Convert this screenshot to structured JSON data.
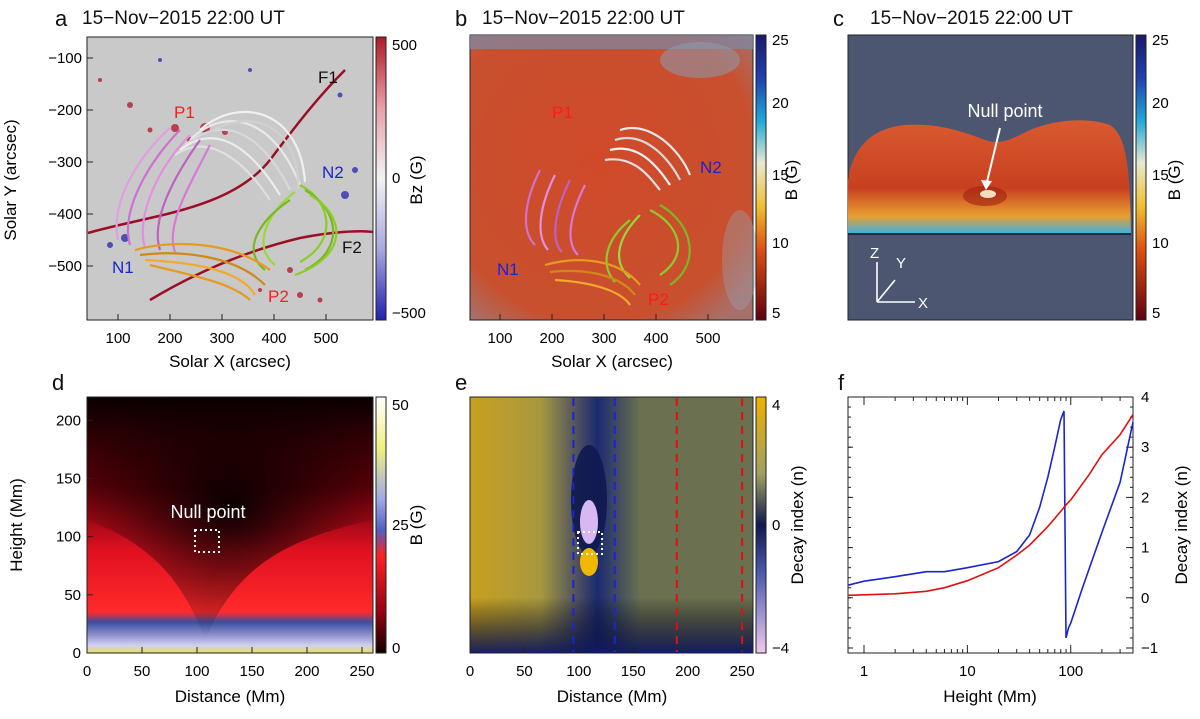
{
  "colors": {
    "red_loop": "#c01030",
    "blue_label": "#1a24d0",
    "red_label": "#ff1a1a",
    "fline": "#9b0f26",
    "green_loop": "#8ccc2a",
    "orange_loop": "#e59a20",
    "pink_loop": "#d070d0",
    "white_loop": "#e8e8e8",
    "slate_bg": "#4d5670",
    "curve_blue": "#1a24d0",
    "curve_red": "#e01010"
  },
  "panel_a": {
    "letter": "a",
    "title": "15−Nov−2015 22:00 UT",
    "xlabel": "Solar X (arcsec)",
    "ylabel": "Solar Y (arcsec)",
    "xticks": [
      "100",
      "200",
      "300",
      "400",
      "500"
    ],
    "yticks": [
      "−100",
      "−200",
      "−300",
      "−400",
      "−500"
    ],
    "cbar_label": "Bz (G)",
    "cbar_ticks": [
      "500",
      "0",
      "−500"
    ],
    "labels": {
      "p1": "P1",
      "p2": "P2",
      "n1": "N1",
      "n2": "N2",
      "f1": "F1",
      "f2": "F2"
    },
    "icon": "magnetogram-image"
  },
  "panel_b": {
    "letter": "b",
    "title": "15−Nov−2015 22:00 UT",
    "xlabel": "Solar X (arcsec)",
    "xticks": [
      "100",
      "200",
      "300",
      "400",
      "500"
    ],
    "cbar_label": "B (G)",
    "cbar_ticks": [
      "25",
      "20",
      "15",
      "10",
      "5"
    ],
    "labels": {
      "p1": "P1",
      "p2": "P2",
      "n1": "N1",
      "n2": "N2"
    },
    "icon": "field-strength-image"
  },
  "panel_c": {
    "letter": "c",
    "title": "15−Nov−2015 22:00 UT",
    "annotation": "Null point",
    "cbar_label": "B (G)",
    "cbar_ticks": [
      "25",
      "20",
      "15",
      "10",
      "5"
    ],
    "axes": {
      "z": "Z",
      "y": "Y",
      "x": "X"
    },
    "icon": "3d-volume-render"
  },
  "panel_d": {
    "letter": "d",
    "xlabel": "Distance (Mm)",
    "ylabel": "Height (Mm)",
    "xticks": [
      "0",
      "50",
      "100",
      "150",
      "200",
      "250"
    ],
    "yticks": [
      "0",
      "50",
      "100",
      "150",
      "200"
    ],
    "annotation": "Null point",
    "cbar_label": "B (G)",
    "cbar_ticks": [
      "50",
      "25",
      "0"
    ]
  },
  "panel_e": {
    "letter": "e",
    "xlabel": "Distance (Mm)",
    "xticks": [
      "0",
      "50",
      "100",
      "150",
      "200",
      "250"
    ],
    "cbar_label": "Decay index (n)",
    "cbar_ticks": [
      "4",
      "0",
      "−4"
    ]
  },
  "chart_data": [
    {
      "type": "line",
      "panel": "f",
      "xlabel": "Height (Mm)",
      "ylabel": "Decay index (n)",
      "xscale": "log",
      "xlim": [
        0.7,
        400
      ],
      "ylim": [
        -1.1,
        4.0
      ],
      "xticks": [
        "1",
        "10",
        "100"
      ],
      "yticks": [
        "−1",
        "0",
        "1",
        "2",
        "3",
        "4"
      ],
      "series": [
        {
          "name": "blue",
          "color": "#1a24d0",
          "x": [
            0.7,
            1,
            2,
            4,
            6,
            10,
            20,
            30,
            40,
            50,
            60,
            70,
            80,
            86,
            90,
            95,
            100,
            130,
            200,
            300,
            400
          ],
          "y": [
            0.25,
            0.33,
            0.42,
            0.52,
            0.52,
            0.6,
            0.72,
            0.92,
            1.25,
            1.8,
            2.4,
            3.0,
            3.55,
            3.72,
            -0.8,
            -0.6,
            -0.5,
            0.2,
            1.3,
            2.3,
            3.5
          ]
        },
        {
          "name": "red",
          "color": "#e01010",
          "x": [
            0.7,
            1,
            2,
            4,
            6,
            10,
            20,
            30,
            40,
            50,
            60,
            70,
            80,
            90,
            100,
            150,
            200,
            300,
            400
          ],
          "y": [
            0.05,
            0.06,
            0.08,
            0.13,
            0.2,
            0.34,
            0.6,
            0.85,
            1.05,
            1.25,
            1.42,
            1.58,
            1.72,
            1.85,
            1.95,
            2.45,
            2.85,
            3.25,
            3.65
          ]
        }
      ]
    },
    {
      "type": "heatmap",
      "panel": "d",
      "xlim": [
        0,
        260
      ],
      "ylim": [
        0,
        220
      ],
      "colorbar_range": [
        0,
        50
      ],
      "null_point": {
        "distance": 110,
        "height": 97
      }
    },
    {
      "type": "heatmap",
      "panel": "e",
      "xlim": [
        0,
        260
      ],
      "ylim": [
        0,
        220
      ],
      "colorbar_range": [
        -4,
        4
      ],
      "dashed_lines": [
        {
          "distance": 95,
          "color": "#1a24d0"
        },
        {
          "distance": 133,
          "color": "#1a24d0"
        },
        {
          "distance": 190,
          "color": "#e01010"
        },
        {
          "distance": 250,
          "color": "#e01010"
        }
      ],
      "null_point": {
        "distance": 110,
        "height": 97
      }
    }
  ]
}
